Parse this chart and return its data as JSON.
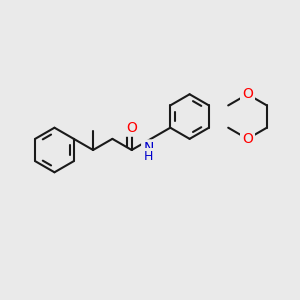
{
  "bg_color": "#eaeaea",
  "bond_color": "#1a1a1a",
  "bond_width": 1.5,
  "atom_colors": {
    "O": "#ff0000",
    "N": "#0000cc",
    "C": "#1a1a1a"
  },
  "font_size": 10
}
